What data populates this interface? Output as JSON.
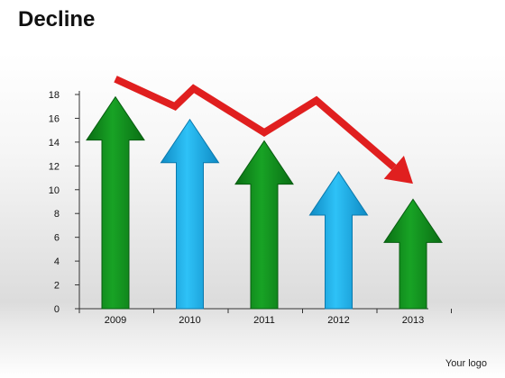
{
  "title": "Decline",
  "logo_text": "Your logo",
  "chart_data": {
    "type": "bar",
    "title": "Decline",
    "categories": [
      "2009",
      "2010",
      "2011",
      "2012",
      "2013"
    ],
    "values": [
      17.8,
      15.9,
      14.1,
      11.5,
      9.2
    ],
    "bar_colors": [
      "#0e8a1a",
      "#1aaae8",
      "#0e8a1a",
      "#1aaae8",
      "#0e8a1a"
    ],
    "ylim": [
      0,
      18
    ],
    "yticks": [
      0,
      2,
      4,
      6,
      8,
      10,
      12,
      14,
      16,
      18
    ],
    "ytick_labels": [
      "0",
      "2",
      "4",
      "6",
      "8",
      "10",
      "12",
      "14",
      "16",
      "18"
    ],
    "bar_shape": "up-arrow",
    "trend_line": {
      "color": "#e01f1f",
      "points": [
        [
          0,
          19.3
        ],
        [
          0.8,
          17.0
        ],
        [
          1.05,
          18.5
        ],
        [
          2,
          14.8
        ],
        [
          2.7,
          17.5
        ],
        [
          4,
          10.5
        ]
      ],
      "arrowhead": "end"
    },
    "grid": false,
    "legend": "none"
  }
}
